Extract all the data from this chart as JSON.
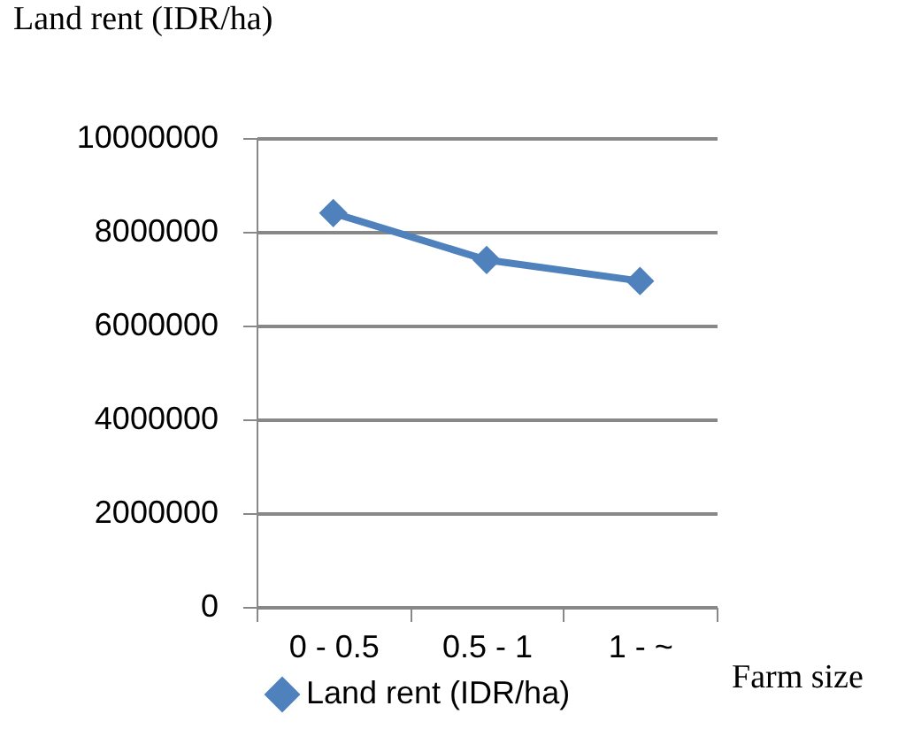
{
  "chart_data": {
    "type": "line",
    "ylabel": "Land rent (IDR/ha)",
    "xlabel": "Farm size",
    "categories": [
      "0 - 0.5",
      "0.5 - 1",
      "1 - ~"
    ],
    "series": [
      {
        "name": "Land rent (IDR/ha)",
        "color": "#4f81bd",
        "values": [
          8400000,
          7400000,
          6950000
        ]
      }
    ],
    "ylim": [
      0,
      10000000
    ],
    "yticks": [
      0,
      2000000,
      4000000,
      6000000,
      8000000,
      10000000
    ],
    "grid": "y",
    "legend": "bottom",
    "marker": "diamond",
    "line_style": "solid"
  }
}
